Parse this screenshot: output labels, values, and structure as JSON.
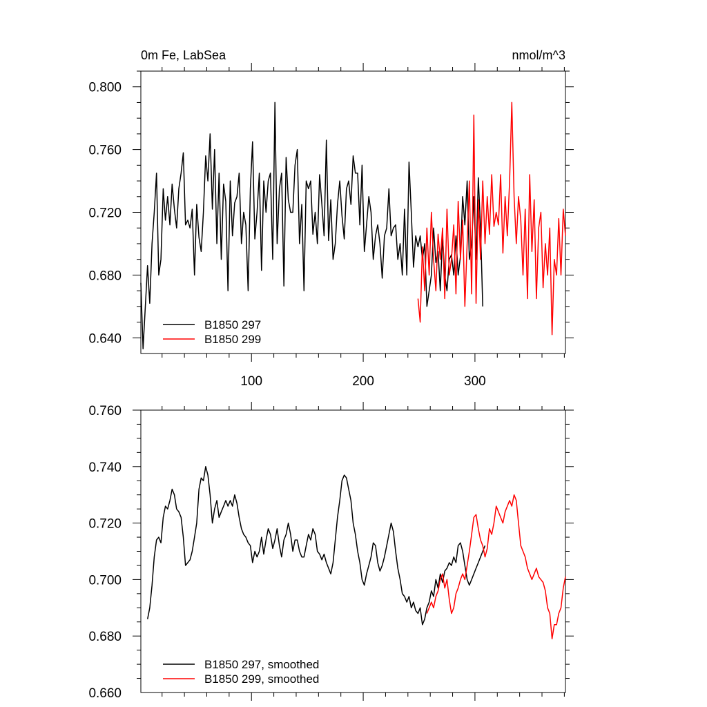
{
  "chart_data": [
    {
      "type": "line",
      "title_left": "0m Fe, LabSea",
      "title_right": "nmol/m^3",
      "xlabel": "",
      "ylabel": "",
      "xlim": [
        1,
        381
      ],
      "ylim": [
        0.63,
        0.81
      ],
      "x_ticks": [
        100,
        200,
        300
      ],
      "y_ticks": [
        0.64,
        0.68,
        0.72,
        0.76,
        0.8
      ],
      "y_tick_labels": [
        "0.640",
        "0.680",
        "0.720",
        "0.760",
        "0.800"
      ],
      "grid": false,
      "legend": "bottom-left",
      "series": [
        {
          "name": "B1850 297",
          "color": "#000000",
          "x": [
            1,
            3,
            5,
            7,
            9,
            11,
            13,
            15,
            17,
            19,
            21,
            23,
            25,
            27,
            29,
            31,
            33,
            35,
            37,
            39,
            41,
            43,
            45,
            47,
            49,
            51,
            53,
            55,
            57,
            59,
            61,
            63,
            65,
            67,
            69,
            71,
            73,
            75,
            77,
            79,
            81,
            83,
            85,
            87,
            89,
            91,
            93,
            95,
            97,
            99,
            101,
            103,
            105,
            107,
            109,
            111,
            113,
            115,
            117,
            119,
            121,
            123,
            125,
            127,
            129,
            131,
            133,
            135,
            137,
            139,
            141,
            143,
            145,
            147,
            149,
            151,
            153,
            155,
            157,
            159,
            161,
            163,
            165,
            167,
            169,
            171,
            173,
            175,
            177,
            179,
            181,
            183,
            185,
            187,
            189,
            191,
            193,
            195,
            197,
            199,
            201,
            203,
            205,
            207,
            209,
            211,
            213,
            215,
            217,
            219,
            221,
            223,
            225,
            227,
            229,
            231,
            233,
            235,
            237,
            239,
            241,
            243,
            245,
            247,
            249,
            251,
            253,
            255,
            257,
            259,
            261,
            263,
            265,
            267,
            269,
            271,
            273,
            275,
            277,
            279,
            281,
            283,
            285,
            287,
            289,
            291,
            293,
            295,
            297,
            299,
            301,
            303,
            305,
            307
          ],
          "y": [
            0.675,
            0.633,
            0.66,
            0.686,
            0.662,
            0.7,
            0.72,
            0.745,
            0.68,
            0.69,
            0.735,
            0.715,
            0.73,
            0.712,
            0.738,
            0.722,
            0.71,
            0.735,
            0.745,
            0.758,
            0.712,
            0.715,
            0.71,
            0.722,
            0.68,
            0.725,
            0.704,
            0.695,
            0.72,
            0.756,
            0.74,
            0.77,
            0.722,
            0.76,
            0.7,
            0.745,
            0.69,
            0.738,
            0.727,
            0.67,
            0.74,
            0.705,
            0.726,
            0.73,
            0.745,
            0.7,
            0.72,
            0.712,
            0.67,
            0.735,
            0.765,
            0.703,
            0.72,
            0.745,
            0.683,
            0.74,
            0.72,
            0.74,
            0.745,
            0.69,
            0.79,
            0.7,
            0.735,
            0.745,
            0.673,
            0.755,
            0.728,
            0.72,
            0.72,
            0.75,
            0.76,
            0.7,
            0.725,
            0.67,
            0.74,
            0.735,
            0.74,
            0.706,
            0.72,
            0.7,
            0.744,
            0.725,
            0.705,
            0.766,
            0.702,
            0.728,
            0.69,
            0.7,
            0.725,
            0.74,
            0.718,
            0.703,
            0.735,
            0.74,
            0.725,
            0.756,
            0.745,
            0.745,
            0.712,
            0.75,
            0.695,
            0.712,
            0.73,
            0.72,
            0.69,
            0.705,
            0.712,
            0.7,
            0.678,
            0.705,
            0.71,
            0.735,
            0.705,
            0.71,
            0.712,
            0.69,
            0.7,
            0.68,
            0.722,
            0.68,
            0.752,
            0.72,
            0.685,
            0.705,
            0.698,
            0.705,
            0.69,
            0.7,
            0.66,
            0.67,
            0.68,
            0.71,
            0.688,
            0.695,
            0.67,
            0.705,
            0.68,
            0.67,
            0.69,
            0.693,
            0.68,
            0.705,
            0.68,
            0.692,
            0.73,
            0.712,
            0.74,
            0.69,
            0.7,
            0.73,
            0.69,
            0.742,
            0.71,
            0.66
          ]
        },
        {
          "name": "B1850 299",
          "color": "#ff0000",
          "x": [
            249,
            251,
            253,
            255,
            257,
            259,
            261,
            263,
            265,
            267,
            269,
            271,
            273,
            275,
            277,
            279,
            281,
            283,
            285,
            287,
            289,
            291,
            293,
            295,
            297,
            299,
            301,
            303,
            305,
            307,
            309,
            311,
            313,
            315,
            317,
            319,
            321,
            323,
            325,
            327,
            329,
            331,
            333,
            335,
            337,
            339,
            341,
            343,
            345,
            347,
            349,
            351,
            353,
            355,
            357,
            359,
            361,
            363,
            365,
            367,
            369,
            371,
            373,
            375,
            377,
            379,
            381
          ],
          "y": [
            0.665,
            0.65,
            0.698,
            0.67,
            0.71,
            0.68,
            0.72,
            0.69,
            0.67,
            0.706,
            0.69,
            0.71,
            0.665,
            0.722,
            0.68,
            0.69,
            0.712,
            0.668,
            0.727,
            0.69,
            0.715,
            0.66,
            0.7,
            0.74,
            0.668,
            0.782,
            0.662,
            0.728,
            0.69,
            0.74,
            0.7,
            0.73,
            0.706,
            0.744,
            0.711,
            0.72,
            0.712,
            0.744,
            0.694,
            0.73,
            0.705,
            0.74,
            0.79,
            0.73,
            0.7,
            0.73,
            0.715,
            0.68,
            0.722,
            0.665,
            0.744,
            0.695,
            0.728,
            0.665,
            0.71,
            0.72,
            0.672,
            0.7,
            0.68,
            0.71,
            0.642,
            0.69,
            0.68,
            0.716,
            0.68,
            0.722,
            0.705
          ]
        }
      ]
    },
    {
      "type": "line",
      "xlabel": "",
      "ylabel": "",
      "xlim": [
        1,
        381
      ],
      "ylim": [
        0.66,
        0.76
      ],
      "x_ticks": [
        100,
        200,
        300
      ],
      "y_ticks": [
        0.66,
        0.68,
        0.7,
        0.72,
        0.74,
        0.76
      ],
      "y_tick_labels": [
        "0.660",
        "0.680",
        "0.700",
        "0.720",
        "0.740",
        "0.760"
      ],
      "grid": false,
      "legend": "bottom-left",
      "series": [
        {
          "name": "B1850 297, smoothed",
          "color": "#000000",
          "x": [
            7,
            9,
            11,
            13,
            15,
            17,
            19,
            21,
            23,
            25,
            27,
            29,
            31,
            33,
            35,
            37,
            39,
            41,
            43,
            45,
            47,
            49,
            51,
            53,
            55,
            57,
            59,
            61,
            63,
            65,
            67,
            69,
            71,
            73,
            75,
            77,
            79,
            81,
            83,
            85,
            87,
            89,
            91,
            93,
            95,
            97,
            99,
            101,
            103,
            105,
            107,
            109,
            111,
            113,
            115,
            117,
            119,
            121,
            123,
            125,
            127,
            129,
            131,
            133,
            135,
            137,
            139,
            141,
            143,
            145,
            147,
            149,
            151,
            153,
            155,
            157,
            159,
            161,
            163,
            165,
            167,
            169,
            171,
            173,
            175,
            177,
            179,
            181,
            183,
            185,
            187,
            189,
            191,
            193,
            195,
            197,
            199,
            201,
            203,
            205,
            207,
            209,
            211,
            213,
            215,
            217,
            219,
            221,
            223,
            225,
            227,
            229,
            231,
            233,
            235,
            237,
            239,
            241,
            243,
            245,
            247,
            249,
            251,
            253,
            255,
            257,
            259,
            261,
            263,
            265,
            267,
            269,
            271,
            273,
            275,
            277,
            279,
            281,
            283,
            285,
            287,
            289,
            291,
            293,
            295,
            297,
            299,
            301,
            303,
            305,
            307,
            309
          ],
          "y": [
            0.686,
            0.69,
            0.698,
            0.708,
            0.714,
            0.715,
            0.713,
            0.722,
            0.726,
            0.725,
            0.728,
            0.732,
            0.73,
            0.725,
            0.724,
            0.722,
            0.715,
            0.705,
            0.706,
            0.707,
            0.71,
            0.715,
            0.72,
            0.732,
            0.736,
            0.735,
            0.74,
            0.737,
            0.73,
            0.72,
            0.725,
            0.728,
            0.722,
            0.724,
            0.726,
            0.728,
            0.726,
            0.728,
            0.726,
            0.73,
            0.727,
            0.722,
            0.718,
            0.716,
            0.715,
            0.713,
            0.712,
            0.706,
            0.71,
            0.708,
            0.71,
            0.715,
            0.709,
            0.714,
            0.718,
            0.716,
            0.711,
            0.714,
            0.718,
            0.712,
            0.708,
            0.714,
            0.716,
            0.72,
            0.716,
            0.71,
            0.714,
            0.714,
            0.71,
            0.708,
            0.708,
            0.712,
            0.716,
            0.714,
            0.718,
            0.716,
            0.71,
            0.709,
            0.707,
            0.709,
            0.706,
            0.704,
            0.702,
            0.706,
            0.714,
            0.722,
            0.728,
            0.735,
            0.737,
            0.736,
            0.732,
            0.728,
            0.72,
            0.716,
            0.71,
            0.706,
            0.7,
            0.698,
            0.702,
            0.705,
            0.708,
            0.713,
            0.712,
            0.706,
            0.703,
            0.705,
            0.708,
            0.712,
            0.716,
            0.72,
            0.717,
            0.71,
            0.704,
            0.7,
            0.695,
            0.694,
            0.692,
            0.694,
            0.69,
            0.692,
            0.689,
            0.688,
            0.69,
            0.684,
            0.686,
            0.69,
            0.692,
            0.696,
            0.694,
            0.7,
            0.697,
            0.702,
            0.699,
            0.703,
            0.704,
            0.706,
            0.705,
            0.708,
            0.706,
            0.712,
            0.713,
            0.71,
            0.705,
            0.7,
            0.698,
            0.7,
            0.702,
            0.704,
            0.706,
            0.708,
            0.71,
            0.712
          ]
        },
        {
          "name": "B1850 299, smoothed",
          "color": "#ff0000",
          "x": [
            257,
            259,
            261,
            263,
            265,
            267,
            269,
            271,
            273,
            275,
            277,
            279,
            281,
            283,
            285,
            287,
            289,
            291,
            293,
            295,
            297,
            299,
            301,
            303,
            305,
            307,
            309,
            311,
            313,
            315,
            317,
            319,
            321,
            323,
            325,
            327,
            329,
            331,
            333,
            335,
            337,
            339,
            341,
            343,
            345,
            347,
            349,
            351,
            353,
            355,
            357,
            359,
            361,
            363,
            365,
            367,
            369,
            371,
            373,
            375,
            377,
            379,
            381
          ],
          "y": [
            0.688,
            0.69,
            0.692,
            0.69,
            0.694,
            0.696,
            0.7,
            0.702,
            0.697,
            0.7,
            0.693,
            0.688,
            0.69,
            0.695,
            0.697,
            0.7,
            0.702,
            0.7,
            0.705,
            0.71,
            0.716,
            0.722,
            0.723,
            0.718,
            0.714,
            0.712,
            0.708,
            0.711,
            0.718,
            0.716,
            0.72,
            0.726,
            0.724,
            0.722,
            0.72,
            0.724,
            0.726,
            0.728,
            0.726,
            0.73,
            0.728,
            0.72,
            0.712,
            0.71,
            0.708,
            0.704,
            0.702,
            0.7,
            0.702,
            0.704,
            0.701,
            0.7,
            0.699,
            0.696,
            0.69,
            0.688,
            0.679,
            0.684,
            0.684,
            0.688,
            0.69,
            0.697,
            0.701
          ]
        }
      ]
    }
  ]
}
